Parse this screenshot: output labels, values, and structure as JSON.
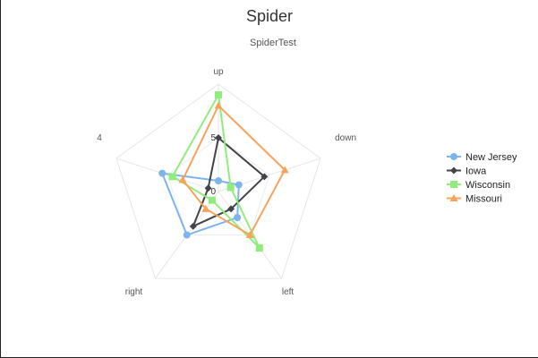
{
  "chart_data": {
    "type": "radar",
    "title": "Spider",
    "subtitle": "SpiderTest",
    "axes": [
      "up",
      "down",
      "left",
      "right",
      "4"
    ],
    "rmax": 10,
    "ticks": [
      0,
      5
    ],
    "grid": true,
    "legend_position": "right",
    "series": [
      {
        "name": "New Jersey",
        "marker": "circle",
        "color": "#7cb5ec",
        "values": [
          1,
          2,
          3,
          5,
          5.5
        ]
      },
      {
        "name": "Iowa",
        "marker": "diamond",
        "color": "#434348",
        "values": [
          5,
          4.5,
          2,
          4,
          1
        ]
      },
      {
        "name": "Wisconsin",
        "marker": "square",
        "color": "#90ed7d",
        "values": [
          9,
          1.2,
          6.5,
          1,
          4.5
        ]
      },
      {
        "name": "Missouri",
        "marker": "triangle",
        "color": "#f7a35c",
        "values": [
          8,
          6.5,
          5,
          2,
          3.5
        ]
      }
    ]
  }
}
